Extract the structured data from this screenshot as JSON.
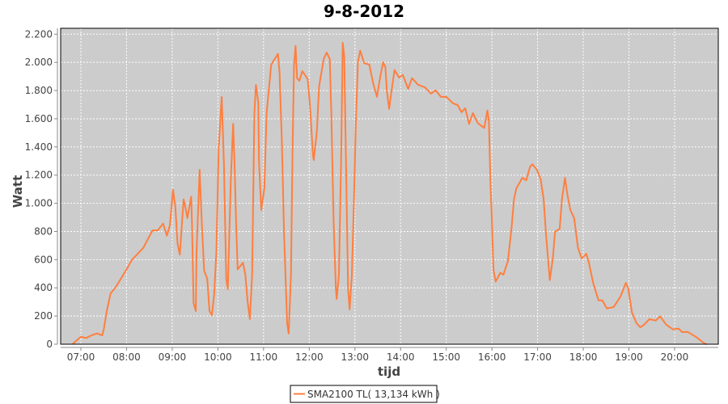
{
  "chart_data": {
    "type": "line",
    "title": "9-8-2012",
    "xlabel": "tijd",
    "ylabel": "Watt",
    "ylim": [
      0,
      2200
    ],
    "xlim": [
      "06:34",
      "20:56"
    ],
    "grid": true,
    "legend_position": "bottom",
    "background_color": "#cccccc",
    "series_color": "#ff7f3f",
    "x_ticks": [
      "07:00",
      "08:00",
      "09:00",
      "10:00",
      "11:00",
      "12:00",
      "13:00",
      "14:00",
      "15:00",
      "16:00",
      "17:00",
      "18:00",
      "19:00",
      "20:00"
    ],
    "y_ticks": [
      {
        "value": 0,
        "label": "0"
      },
      {
        "value": 200,
        "label": "200"
      },
      {
        "value": 400,
        "label": "400"
      },
      {
        "value": 600,
        "label": "600"
      },
      {
        "value": 800,
        "label": "800"
      },
      {
        "value": 1000,
        "label": "1.000"
      },
      {
        "value": 1200,
        "label": "1.200"
      },
      {
        "value": 1400,
        "label": "1.400"
      },
      {
        "value": 1600,
        "label": "1.600"
      },
      {
        "value": 1800,
        "label": "1.800"
      },
      {
        "value": 2000,
        "label": "2.000"
      },
      {
        "value": 2200,
        "label": "2.200"
      }
    ],
    "series": [
      {
        "name": "SMA2100 TL( 13,134 kWh )",
        "x": [
          "06:49",
          "07:00",
          "07:07",
          "07:14",
          "07:21",
          "07:28",
          "07:30",
          "07:34",
          "07:39",
          "07:46",
          "08:00",
          "08:07",
          "08:22",
          "08:34",
          "08:41",
          "08:48",
          "08:53",
          "08:57",
          "09:01",
          "09:04",
          "09:07",
          "09:10",
          "09:15",
          "09:17",
          "09:20",
          "09:25",
          "09:26",
          "09:28",
          "09:31",
          "09:32",
          "09:36",
          "09:39",
          "09:42",
          "09:46",
          "09:49",
          "09:52",
          "09:55",
          "09:58",
          "10:01",
          "10:05",
          "10:08",
          "10:11",
          "10:13",
          "10:17",
          "10:20",
          "10:22",
          "10:24",
          "10:26",
          "10:33",
          "10:36",
          "10:39",
          "10:42",
          "10:45",
          "10:48",
          "10:50",
          "10:53",
          "10:54",
          "10:57",
          "11:01",
          "11:04",
          "11:10",
          "11:19",
          "11:21",
          "11:24",
          "11:27",
          "11:31",
          "11:33",
          "11:36",
          "11:38",
          "11:40",
          "11:42",
          "11:44",
          "11:47",
          "11:51",
          "11:58",
          "12:01",
          "12:05",
          "12:06",
          "12:10",
          "12:13",
          "12:19",
          "12:23",
          "12:27",
          "12:29",
          "12:32",
          "12:35",
          "12:36",
          "12:39",
          "12:42",
          "12:44",
          "12:46",
          "12:49",
          "12:51",
          "12:53",
          "12:56",
          "12:59",
          "13:01",
          "13:04",
          "13:07",
          "13:12",
          "13:19",
          "13:24",
          "13:29",
          "13:33",
          "13:37",
          "13:40",
          "13:42",
          "13:45",
          "13:47",
          "13:52",
          "13:58",
          "14:03",
          "14:10",
          "14:15",
          "14:23",
          "14:32",
          "14:40",
          "14:46",
          "14:53",
          "15:00",
          "15:09",
          "15:15",
          "15:20",
          "15:25",
          "15:30",
          "15:35",
          "15:41",
          "15:45",
          "15:50",
          "15:54",
          "15:56",
          "15:58",
          "16:00",
          "16:02",
          "16:05",
          "16:11",
          "16:15",
          "16:21",
          "16:26",
          "16:29",
          "16:32",
          "16:40",
          "16:45",
          "16:50",
          "16:53",
          "16:59",
          "17:04",
          "17:08",
          "17:11",
          "17:16",
          "17:20",
          "17:23",
          "17:29",
          "17:32",
          "17:36",
          "17:39",
          "17:43",
          "17:48",
          "17:53",
          "17:58",
          "18:04",
          "18:07",
          "18:13",
          "18:20",
          "18:25",
          "18:31",
          "18:40",
          "18:49",
          "18:56",
          "18:59",
          "19:04",
          "19:10",
          "19:15",
          "19:20",
          "19:27",
          "19:35",
          "19:41",
          "19:49",
          "19:58",
          "20:05",
          "20:10",
          "20:17",
          "20:28",
          "20:39",
          "20:42"
        ],
        "y": [
          0,
          53,
          44,
          63,
          76,
          63,
          101,
          235,
          360,
          407,
          531,
          598,
          684,
          808,
          808,
          856,
          770,
          847,
          1095,
          980,
          713,
          636,
          1028,
          980,
          895,
          1047,
          847,
          292,
          235,
          655,
          1238,
          847,
          522,
          464,
          235,
          206,
          350,
          655,
          1382,
          1755,
          1267,
          464,
          390,
          1171,
          1564,
          1258,
          837,
          531,
          579,
          493,
          302,
          178,
          493,
          1640,
          1840,
          1715,
          1296,
          952,
          1107,
          1640,
          1984,
          2060,
          1927,
          1450,
          780,
          149,
          75,
          493,
          1353,
          1984,
          2118,
          1888,
          1869,
          1938,
          1881,
          1697,
          1336,
          1307,
          1508,
          1831,
          2024,
          2070,
          2024,
          1640,
          877,
          397,
          321,
          493,
          1336,
          2139,
          2041,
          1066,
          397,
          247,
          493,
          1066,
          1525,
          2003,
          2083,
          1995,
          1984,
          1852,
          1755,
          1888,
          2001,
          1967,
          1795,
          1669,
          1755,
          1946,
          1892,
          1911,
          1812,
          1888,
          1841,
          1823,
          1778,
          1802,
          1755,
          1755,
          1709,
          1697,
          1646,
          1674,
          1563,
          1640,
          1573,
          1554,
          1535,
          1659,
          1583,
          1162,
          875,
          531,
          445,
          507,
          493,
          589,
          837,
          1028,
          1105,
          1181,
          1163,
          1258,
          1277,
          1239,
          1171,
          1028,
          780,
          455,
          608,
          799,
          818,
          1028,
          1181,
          1067,
          952,
          895,
          684,
          608,
          642,
          589,
          436,
          311,
          311,
          254,
          264,
          340,
          436,
          397,
          225,
          149,
          120,
          139,
          178,
          168,
          197,
          139,
          105,
          111,
          86,
          88,
          53,
          6,
          0
        ]
      }
    ]
  }
}
